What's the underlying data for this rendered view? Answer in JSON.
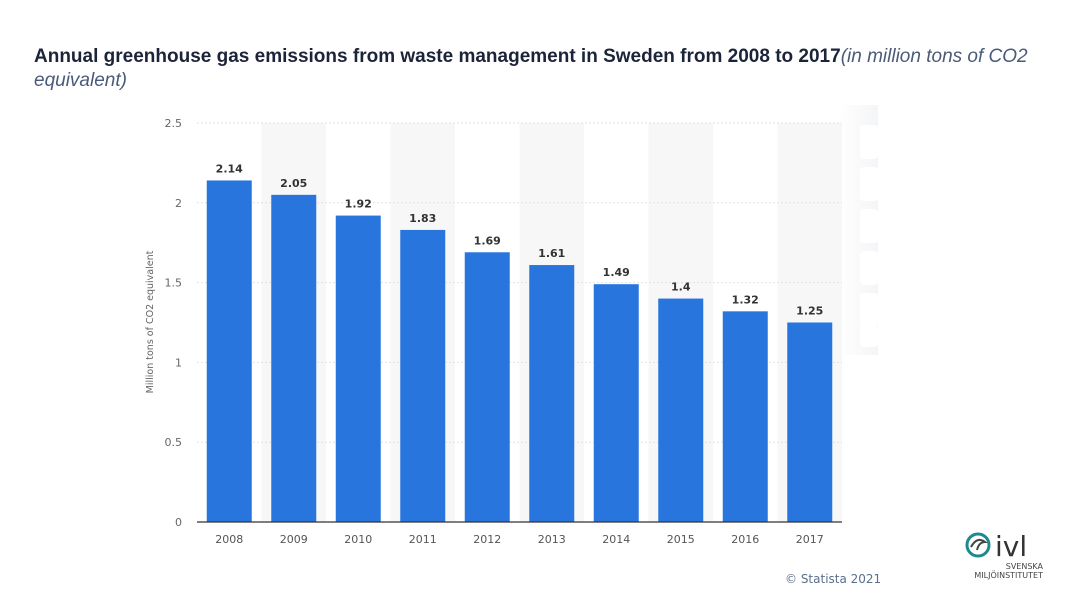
{
  "title": {
    "main": "Annual greenhouse gas emissions from waste management in Sweden from 2008 to 2017",
    "sub": "(in million tons of CO2 equivalent)"
  },
  "credit": "© Statista 2021",
  "logo": {
    "text": "ivl",
    "sub1": "SVENSKA",
    "sub2": "MILJÖINSTITUTET"
  },
  "colors": {
    "bar": "#2876dd",
    "band": "#f7f7f7",
    "logo": "#1d8a8f"
  },
  "chart_data": {
    "type": "bar",
    "title": "Annual greenhouse gas emissions from waste management in Sweden from 2008 to 2017",
    "xlabel": "",
    "ylabel": "Million tons of CO2 equivalent",
    "categories": [
      "2008",
      "2009",
      "2010",
      "2011",
      "2012",
      "2013",
      "2014",
      "2015",
      "2016",
      "2017"
    ],
    "values": [
      2.14,
      2.05,
      1.92,
      1.83,
      1.69,
      1.61,
      1.49,
      1.4,
      1.32,
      1.25
    ],
    "value_labels": [
      "2.14",
      "2.05",
      "1.92",
      "1.83",
      "1.69",
      "1.61",
      "1.49",
      "1.4",
      "1.32",
      "1.25"
    ],
    "yticks": [
      "0",
      "0.5",
      "1",
      "1.5",
      "2",
      "2.5"
    ],
    "ylim": [
      0,
      2.5
    ],
    "grid": true,
    "legend": "none"
  }
}
